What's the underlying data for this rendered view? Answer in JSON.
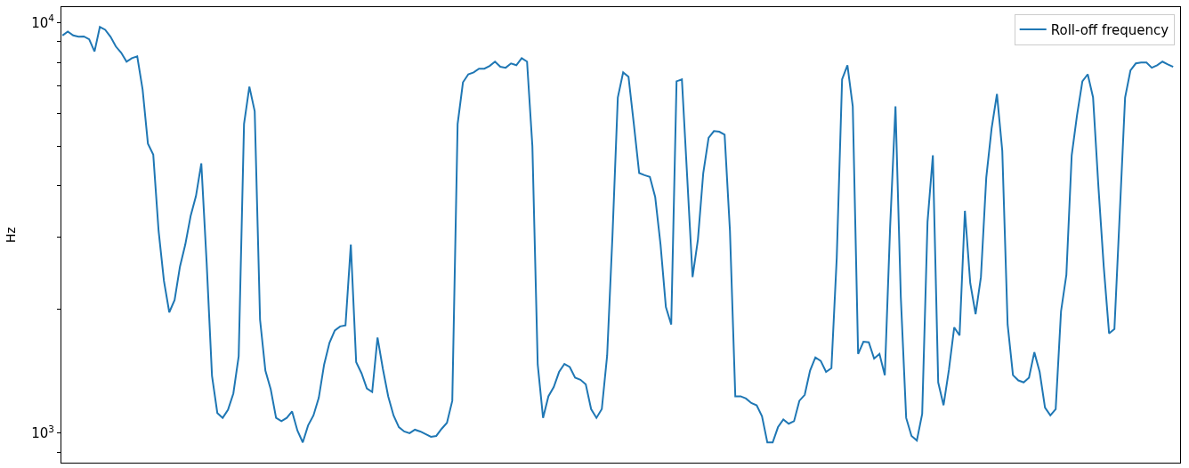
{
  "chart_data": {
    "type": "line",
    "ylabel": "Hz",
    "log": "y",
    "grid": false,
    "legend": "top right",
    "tick_labels": "y",
    "ylim": [
      848,
      10900
    ],
    "yticks": [
      {
        "value": 900,
        "label": null
      },
      {
        "value": 1000,
        "label": "10$^{3}$"
      },
      {
        "value": 2000,
        "label": null
      },
      {
        "value": 3000,
        "label": null
      },
      {
        "value": 4000,
        "label": null
      },
      {
        "value": 5000,
        "label": null
      },
      {
        "value": 6000,
        "label": null
      },
      {
        "value": 7000,
        "label": null
      },
      {
        "value": 8000,
        "label": null
      },
      {
        "value": 9000,
        "label": null
      },
      {
        "value": 10000,
        "label": "10$^{4}$"
      }
    ],
    "categories": [
      null,
      null,
      null,
      null,
      null,
      null,
      null,
      null,
      null,
      null,
      null,
      null,
      null,
      null,
      null,
      null,
      null,
      null,
      null,
      null,
      null,
      null,
      null,
      null,
      null,
      null,
      null,
      null,
      null,
      null,
      null,
      null,
      null,
      null,
      null,
      null,
      null,
      null,
      null,
      null,
      null,
      null,
      null,
      null,
      null,
      null,
      null,
      null,
      null,
      null,
      null,
      null,
      null,
      null,
      null,
      null,
      null,
      null,
      null,
      null,
      null,
      null,
      null,
      null,
      null,
      null,
      null,
      null,
      null,
      null,
      null,
      null,
      null,
      null,
      null,
      null,
      null,
      null,
      null,
      null,
      null,
      null,
      null,
      null,
      null,
      null,
      null,
      null,
      null,
      null,
      null,
      null,
      null,
      null,
      null,
      null,
      null,
      null,
      null,
      null,
      null,
      null,
      null,
      null,
      null,
      null,
      null,
      null,
      null,
      null,
      null,
      null,
      null,
      null,
      null,
      null,
      null,
      null,
      null,
      null,
      null,
      null,
      null,
      null,
      null,
      null,
      null,
      null,
      null,
      null,
      null,
      null,
      null,
      null,
      null,
      null,
      null,
      null,
      null,
      null,
      null,
      null,
      null,
      null,
      null,
      null,
      null,
      null,
      null,
      null,
      null,
      null,
      null,
      null,
      null,
      null,
      null,
      null,
      null,
      null,
      null,
      null,
      null,
      null,
      null,
      null,
      null,
      null,
      null,
      null,
      null,
      null,
      null,
      null,
      null,
      null,
      null,
      null,
      null,
      null,
      null,
      null,
      null,
      null,
      null,
      null,
      null,
      null,
      null,
      null,
      null,
      null,
      null,
      null,
      null,
      null,
      null,
      null,
      null,
      null,
      null,
      null,
      null,
      null,
      null,
      null,
      null,
      null,
      null
    ],
    "series": [
      {
        "name": "Roll-off frequency",
        "color": "#1f77b4",
        "values": [
          9300,
          9500,
          9300,
          9230,
          9250,
          9100,
          8500,
          9750,
          9600,
          9230,
          8740,
          8440,
          8030,
          8190,
          8270,
          6880,
          5070,
          4770,
          3110,
          2350,
          1970,
          2110,
          2545,
          2880,
          3380,
          3780,
          4540,
          2600,
          1380,
          1120,
          1090,
          1140,
          1250,
          1540,
          5660,
          6980,
          6080,
          1890,
          1420,
          1280,
          1090,
          1070,
          1090,
          1130,
          1015,
          950,
          1045,
          1105,
          1220,
          1470,
          1660,
          1780,
          1820,
          1830,
          2880,
          1490,
          1400,
          1285,
          1260,
          1710,
          1435,
          1230,
          1105,
          1035,
          1010,
          1000,
          1020,
          1010,
          995,
          980,
          985,
          1025,
          1060,
          1200,
          5660,
          7150,
          7480,
          7560,
          7720,
          7720,
          7840,
          8030,
          7800,
          7760,
          7950,
          7870,
          8190,
          8030,
          5000,
          1470,
          1090,
          1230,
          1295,
          1410,
          1475,
          1450,
          1365,
          1350,
          1315,
          1145,
          1090,
          1145,
          1545,
          3030,
          6570,
          7560,
          7380,
          5660,
          4300,
          4250,
          4210,
          3760,
          2880,
          2030,
          1840,
          7190,
          7270,
          4190,
          2400,
          2960,
          4300,
          5240,
          5440,
          5420,
          5330,
          3110,
          1230,
          1230,
          1215,
          1185,
          1170,
          1100,
          950,
          950,
          1035,
          1080,
          1055,
          1070,
          1200,
          1240,
          1420,
          1530,
          1500,
          1410,
          1440,
          2675,
          7270,
          7870,
          6250,
          1560,
          1670,
          1665,
          1520,
          1560,
          1385,
          3190,
          6250,
          2140,
          1090,
          985,
          960,
          1115,
          3270,
          4750,
          1330,
          1170,
          1425,
          1810,
          1730,
          3480,
          2320,
          1950,
          2400,
          4190,
          5520,
          6700,
          4870,
          1840,
          1385,
          1345,
          1330,
          1365,
          1575,
          1410,
          1155,
          1105,
          1145,
          1980,
          2430,
          4750,
          5950,
          7190,
          7480,
          6570,
          3990,
          2545,
          1750,
          1795,
          3430,
          6570,
          7640,
          7950,
          7990,
          7990,
          7760,
          7870,
          8030,
          7910,
          7800
        ]
      }
    ]
  }
}
